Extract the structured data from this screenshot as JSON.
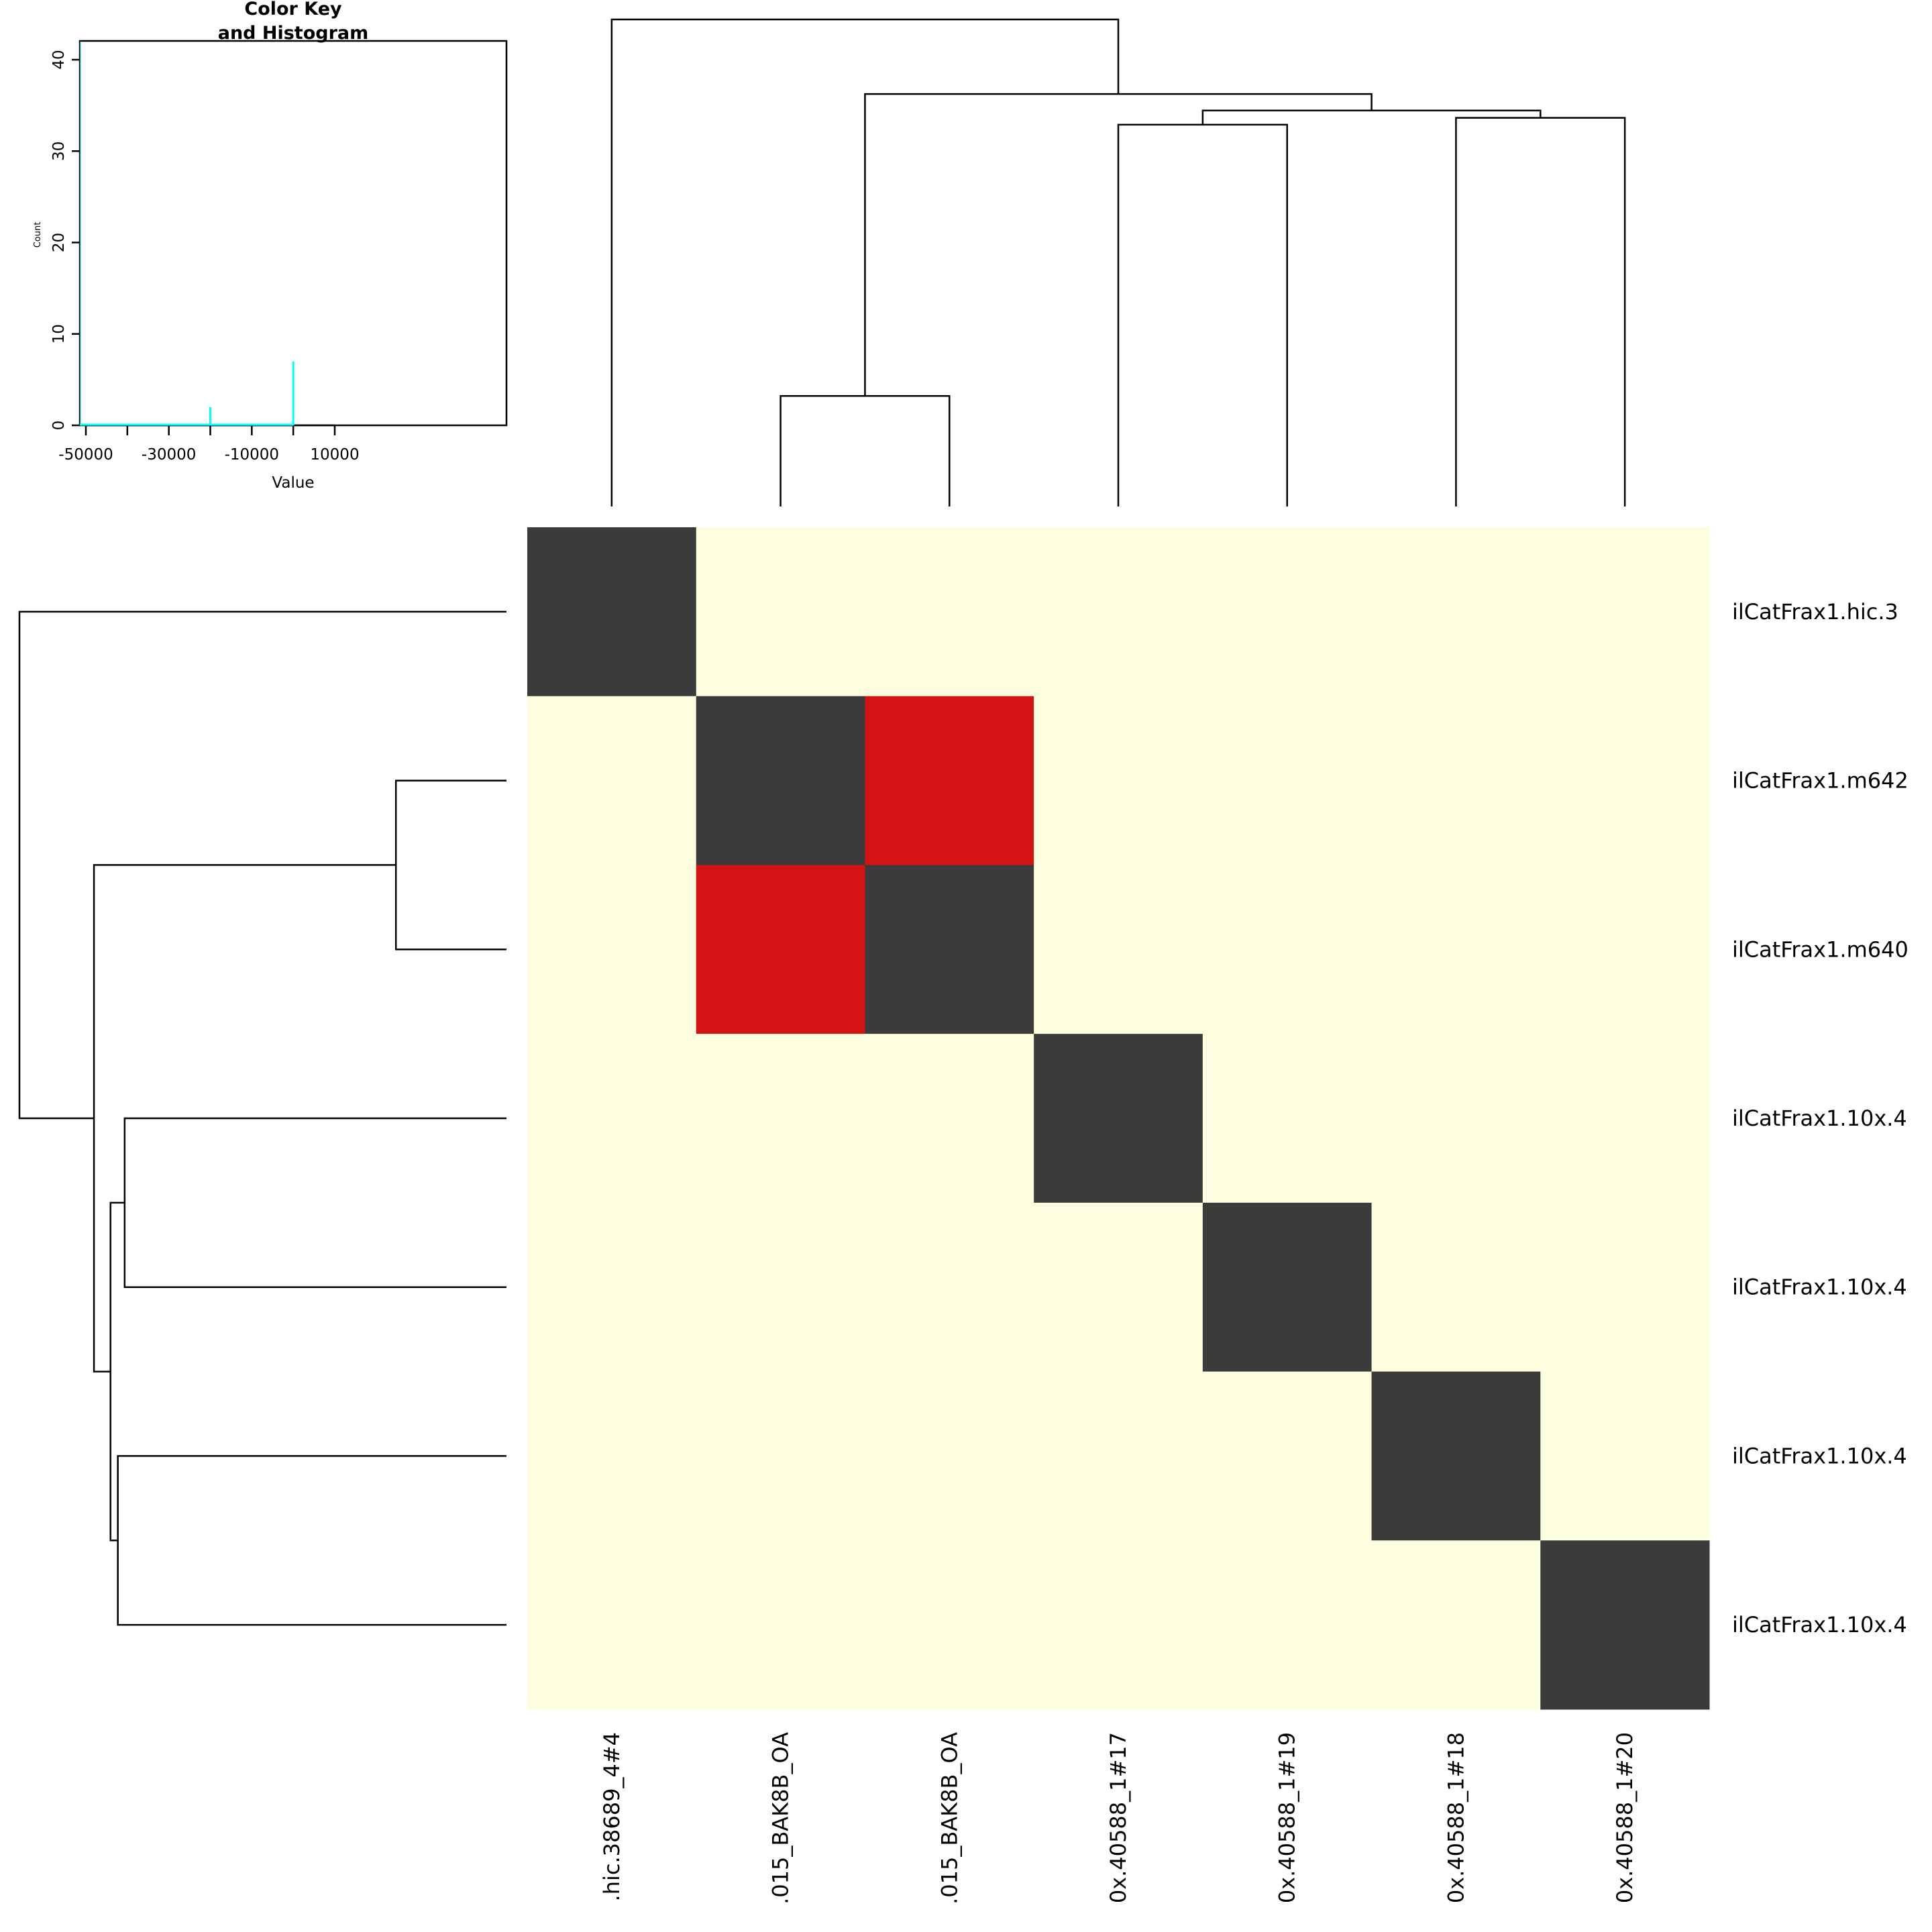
{
  "chart_data": {
    "type": "heatmap",
    "row_labels": [
      "ilCatFrax1.hic.3",
      "ilCatFrax1.m642",
      "ilCatFrax1.m640",
      "ilCatFrax1.10x.4",
      "ilCatFrax1.10x.4",
      "ilCatFrax1.10x.4",
      "ilCatFrax1.10x.4"
    ],
    "col_labels": [
      ".hic.38689_4#4",
      ".015_BAK8B_OA",
      ".015_BAK8B_OA",
      "0x.40588_1#17",
      "0x.40588_1#19",
      "0x.40588_1#18",
      "0x.40588_1#20"
    ],
    "level_colors": [
      "#fdfde0",
      "#d41414",
      "#3b3b3b"
    ],
    "matrix": [
      [
        2,
        0,
        0,
        0,
        0,
        0,
        0
      ],
      [
        0,
        2,
        1,
        0,
        0,
        0,
        0
      ],
      [
        0,
        1,
        2,
        0,
        0,
        0,
        0
      ],
      [
        0,
        0,
        0,
        2,
        0,
        0,
        0
      ],
      [
        0,
        0,
        0,
        0,
        2,
        0,
        0
      ],
      [
        0,
        0,
        0,
        0,
        0,
        2,
        0
      ],
      [
        0,
        0,
        0,
        0,
        0,
        0,
        2
      ]
    ],
    "dendrogram": {
      "leaf_order": [
        0,
        1,
        2,
        3,
        4,
        5,
        6
      ],
      "merges": [
        {
          "a": "L1",
          "b": "L2",
          "height": 22.7
        },
        {
          "a": "L3",
          "b": "L4",
          "height": 78.4
        },
        {
          "a": "L5",
          "b": "L6",
          "height": 79.8
        },
        {
          "a": "M2",
          "b": "M3",
          "height": 81.3
        },
        {
          "a": "M1",
          "b": "M4",
          "height": 84.7
        },
        {
          "a": "L0",
          "b": "M5",
          "height": 100
        }
      ]
    },
    "color_key": {
      "title_line1": "Color Key",
      "title_line2": "and Histogram",
      "xlabel": "Value",
      "ylabel": "Count",
      "x_ticks": [
        -50000,
        -40000,
        -30000,
        -20000,
        -10000,
        0,
        10000
      ],
      "x_tick_labels": [
        "-50000",
        "-30000",
        "-10000",
        "10000"
      ],
      "x_tick_label_values": [
        -50000,
        -30000,
        -10000,
        10000
      ],
      "xlim": [
        -51500,
        51000
      ],
      "y_ticks": [
        0,
        10,
        20,
        30,
        40
      ],
      "y_tick_labels": [
        "0",
        "10",
        "20",
        "30",
        "40"
      ],
      "ylim": [
        0,
        42
      ],
      "hist_color": "#00ffff",
      "histogram": [
        {
          "value": -50000,
          "count": 42
        },
        {
          "value": -20000,
          "count": 2
        },
        {
          "value": 0,
          "count": 7
        }
      ]
    }
  }
}
